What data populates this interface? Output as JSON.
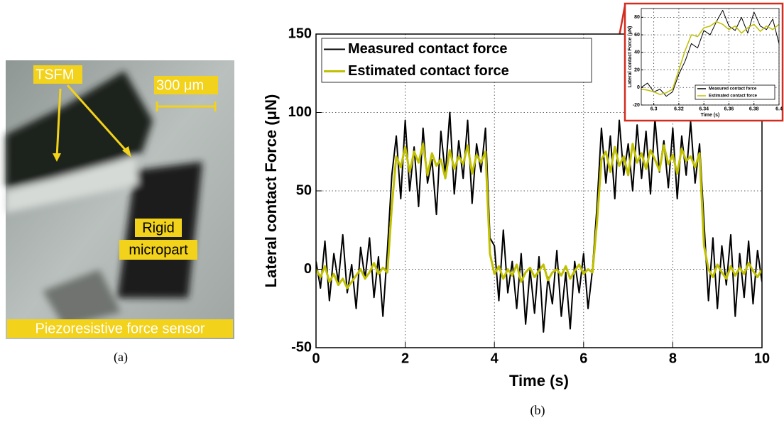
{
  "panel_a": {
    "tsfm": "TSFM",
    "scale": "300 μm",
    "rigid": "Rigid",
    "micropart": "micropart",
    "sensor": "Piezoresistive force sensor",
    "caption": "(a)"
  },
  "panel_b_caption": "(b)",
  "chart_data": [
    {
      "type": "line",
      "xlabel": "Time (s)",
      "ylabel": "Lateral contact Force (μN)",
      "xlim": [
        0,
        10
      ],
      "ylim": [
        -50,
        150
      ],
      "xticks": [
        0,
        2,
        4,
        6,
        8,
        10
      ],
      "yticks": [
        -50,
        0,
        50,
        100,
        150
      ],
      "grid": true,
      "legend": "upper left",
      "x": [
        0,
        0.1,
        0.2,
        0.3,
        0.4,
        0.5,
        0.6,
        0.7,
        0.8,
        0.9,
        1,
        1.1,
        1.2,
        1.3,
        1.4,
        1.5,
        1.6,
        1.7,
        1.8,
        1.9,
        2,
        2.1,
        2.2,
        2.3,
        2.4,
        2.5,
        2.6,
        2.7,
        2.8,
        2.9,
        3,
        3.1,
        3.2,
        3.3,
        3.4,
        3.5,
        3.6,
        3.7,
        3.8,
        3.9,
        4,
        4.1,
        4.2,
        4.3,
        4.4,
        4.5,
        4.6,
        4.7,
        4.8,
        4.9,
        5,
        5.1,
        5.2,
        5.3,
        5.4,
        5.5,
        5.6,
        5.7,
        5.8,
        5.9,
        6,
        6.1,
        6.2,
        6.3,
        6.4,
        6.5,
        6.6,
        6.7,
        6.8,
        6.9,
        7,
        7.1,
        7.2,
        7.3,
        7.4,
        7.5,
        7.6,
        7.7,
        7.8,
        7.9,
        8,
        8.1,
        8.2,
        8.3,
        8.4,
        8.5,
        8.6,
        8.7,
        8.8,
        8.9,
        9,
        9.1,
        9.2,
        9.3,
        9.4,
        9.5,
        9.6,
        9.7,
        9.8,
        9.9,
        10
      ],
      "series": [
        {
          "name": "Measured contact force",
          "color": "#000000",
          "width": 2,
          "values": [
            5,
            -12,
            18,
            -20,
            10,
            -8,
            22,
            -15,
            3,
            -25,
            14,
            -6,
            20,
            -18,
            8,
            -30,
            12,
            60,
            85,
            45,
            95,
            50,
            78,
            40,
            90,
            55,
            70,
            35,
            88,
            60,
            100,
            48,
            82,
            58,
            95,
            42,
            80,
            62,
            90,
            20,
            15,
            -20,
            25,
            -15,
            5,
            -25,
            10,
            -35,
            0,
            -28,
            8,
            -40,
            -5,
            -22,
            12,
            -30,
            -2,
            -38,
            5,
            -15,
            10,
            -25,
            0,
            40,
            90,
            55,
            85,
            45,
            95,
            60,
            80,
            50,
            92,
            58,
            88,
            48,
            96,
            62,
            82,
            52,
            90,
            45,
            85,
            60,
            94,
            55,
            80,
            30,
            -20,
            20,
            -25,
            15,
            -10,
            22,
            -30,
            10,
            -18,
            18,
            -22,
            12,
            -8
          ]
        },
        {
          "name": "Estimated contact force",
          "color": "#c0c000",
          "width": 3,
          "values": [
            0,
            -5,
            2,
            -8,
            -3,
            -10,
            -6,
            -12,
            -8,
            -4,
            0,
            -6,
            -2,
            4,
            -3,
            1,
            -2,
            40,
            72,
            65,
            78,
            62,
            75,
            68,
            80,
            60,
            74,
            66,
            70,
            58,
            76,
            64,
            72,
            67,
            79,
            61,
            73,
            68,
            75,
            10,
            -3,
            2,
            -6,
            0,
            -4,
            3,
            -8,
            -2,
            1,
            -5,
            -1,
            3,
            -7,
            -2,
            0,
            -4,
            2,
            -6,
            -1,
            3,
            -3,
            0,
            -2,
            30,
            70,
            75,
            62,
            78,
            66,
            72,
            60,
            80,
            68,
            74,
            64,
            76,
            70,
            63,
            79,
            67,
            73,
            61,
            77,
            69,
            72,
            65,
            74,
            15,
            0,
            -5,
            3,
            -2,
            -6,
            2,
            -4,
            1,
            -3,
            4,
            -1,
            -5,
            0
          ]
        }
      ]
    },
    {
      "type": "line",
      "xlabel": "Time (s)",
      "ylabel": "Lateral contact Force (μN)",
      "xlim": [
        6.29,
        6.4
      ],
      "ylim": [
        -20,
        90
      ],
      "xticks": [
        6.3,
        6.32,
        6.34,
        6.36,
        6.38,
        6.4
      ],
      "yticks": [
        -20,
        0,
        20,
        40,
        60,
        80
      ],
      "grid": true,
      "legend": "lower right",
      "x": [
        6.29,
        6.295,
        6.3,
        6.305,
        6.31,
        6.315,
        6.32,
        6.325,
        6.33,
        6.335,
        6.34,
        6.345,
        6.35,
        6.355,
        6.36,
        6.365,
        6.37,
        6.375,
        6.38,
        6.385,
        6.39,
        6.395,
        6.4
      ],
      "series": [
        {
          "name": "Measured contact force",
          "color": "#000000",
          "width": 1,
          "values": [
            0,
            5,
            -5,
            -2,
            -10,
            -5,
            15,
            30,
            50,
            45,
            65,
            60,
            75,
            88,
            70,
            65,
            80,
            62,
            86,
            70,
            66,
            78,
            50
          ]
        },
        {
          "name": "Estimated contact force",
          "color": "#c0c000",
          "width": 1.5,
          "values": [
            -2,
            -3,
            -5,
            -8,
            -6,
            -2,
            20,
            42,
            60,
            58,
            68,
            70,
            75,
            72,
            66,
            70,
            62,
            68,
            72,
            64,
            70,
            66,
            72
          ]
        }
      ]
    }
  ]
}
